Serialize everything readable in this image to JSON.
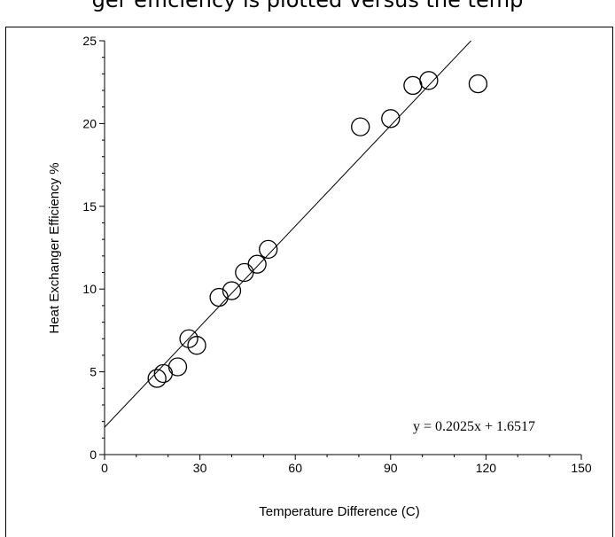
{
  "header": {
    "partial_title": "ger efficiency is plotted versus the temp"
  },
  "chart_data": {
    "type": "scatter",
    "title": "",
    "xlabel": "Temperature Difference (C)",
    "ylabel": "Heat Exchanger Efficiency %",
    "xlim": [
      0,
      150
    ],
    "ylim": [
      0,
      25
    ],
    "xticks": [
      0,
      30,
      60,
      90,
      120,
      150
    ],
    "yticks": [
      0,
      5,
      10,
      15,
      20,
      25
    ],
    "grid": false,
    "points": [
      {
        "x": 16.5,
        "y": 4.6
      },
      {
        "x": 18.5,
        "y": 4.9
      },
      {
        "x": 23.0,
        "y": 5.3
      },
      {
        "x": 26.5,
        "y": 7.0
      },
      {
        "x": 29.0,
        "y": 6.6
      },
      {
        "x": 36.0,
        "y": 9.5
      },
      {
        "x": 40.0,
        "y": 9.9
      },
      {
        "x": 44.0,
        "y": 11.0
      },
      {
        "x": 48.0,
        "y": 11.5
      },
      {
        "x": 51.5,
        "y": 12.4
      },
      {
        "x": 80.5,
        "y": 19.8
      },
      {
        "x": 90.0,
        "y": 20.3
      },
      {
        "x": 97.0,
        "y": 22.3
      },
      {
        "x": 102.0,
        "y": 22.6
      },
      {
        "x": 117.5,
        "y": 22.4
      }
    ],
    "trendline": {
      "slope": 0.2025,
      "intercept": 1.6517,
      "x_range": [
        0,
        115.3
      ]
    },
    "equation_label": "y = 0.2025x + 1.6517"
  }
}
